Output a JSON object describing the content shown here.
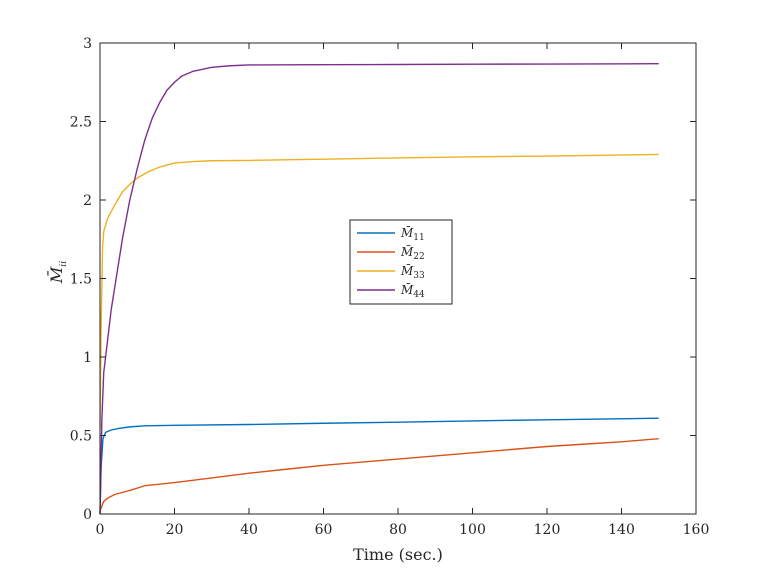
{
  "chart_data": {
    "type": "line",
    "xlabel": "Time (sec.)",
    "ylabel": {
      "base": "M̄",
      "sub": "ii"
    },
    "xlim": [
      0,
      160
    ],
    "ylim": [
      0,
      3
    ],
    "xticks": [
      "0",
      "20",
      "40",
      "60",
      "80",
      "100",
      "120",
      "140",
      "160"
    ],
    "yticks": [
      "0",
      "0.5",
      "1",
      "1.5",
      "2",
      "2.5",
      "3"
    ],
    "grid": false,
    "legend_position": "center",
    "series": [
      {
        "name": "M̄11",
        "base": "M̄",
        "sub": "11",
        "color": "#0072BD",
        "points": [
          [
            0,
            0
          ],
          [
            0.3,
            0.3
          ],
          [
            0.8,
            0.48
          ],
          [
            1.5,
            0.52
          ],
          [
            3,
            0.535
          ],
          [
            5,
            0.545
          ],
          [
            8,
            0.555
          ],
          [
            12,
            0.562
          ],
          [
            20,
            0.565
          ],
          [
            40,
            0.57
          ],
          [
            60,
            0.578
          ],
          [
            80,
            0.585
          ],
          [
            100,
            0.593
          ],
          [
            120,
            0.6
          ],
          [
            150,
            0.61
          ]
        ]
      },
      {
        "name": "M̄22",
        "base": "M̄",
        "sub": "22",
        "color": "#D95319",
        "points": [
          [
            0,
            0.02
          ],
          [
            0.5,
            0.05
          ],
          [
            1,
            0.08
          ],
          [
            2,
            0.1
          ],
          [
            4,
            0.125
          ],
          [
            8,
            0.15
          ],
          [
            12,
            0.18
          ],
          [
            16,
            0.19
          ],
          [
            20,
            0.2
          ],
          [
            30,
            0.23
          ],
          [
            40,
            0.26
          ],
          [
            50,
            0.285
          ],
          [
            60,
            0.31
          ],
          [
            70,
            0.33
          ],
          [
            80,
            0.35
          ],
          [
            90,
            0.37
          ],
          [
            100,
            0.39
          ],
          [
            110,
            0.41
          ],
          [
            120,
            0.43
          ],
          [
            130,
            0.445
          ],
          [
            140,
            0.46
          ],
          [
            150,
            0.48
          ]
        ]
      },
      {
        "name": "M̄33",
        "base": "M̄",
        "sub": "33",
        "color": "#EDB120",
        "points": [
          [
            0,
            0.55
          ],
          [
            0.3,
            1.2
          ],
          [
            0.7,
            1.7
          ],
          [
            1,
            1.8
          ],
          [
            2,
            1.88
          ],
          [
            4,
            1.97
          ],
          [
            6,
            2.05
          ],
          [
            8,
            2.1
          ],
          [
            10,
            2.14
          ],
          [
            13,
            2.18
          ],
          [
            16,
            2.21
          ],
          [
            20,
            2.235
          ],
          [
            25,
            2.245
          ],
          [
            30,
            2.25
          ],
          [
            40,
            2.252
          ],
          [
            60,
            2.26
          ],
          [
            80,
            2.268
          ],
          [
            100,
            2.275
          ],
          [
            120,
            2.28
          ],
          [
            150,
            2.29
          ]
        ]
      },
      {
        "name": "M̄44",
        "base": "M̄",
        "sub": "44",
        "color": "#7E2F8E",
        "points": [
          [
            0,
            0
          ],
          [
            0.5,
            0.6
          ],
          [
            1,
            0.9
          ],
          [
            2,
            1.1
          ],
          [
            3,
            1.3
          ],
          [
            4,
            1.45
          ],
          [
            6,
            1.75
          ],
          [
            8,
            2.0
          ],
          [
            10,
            2.2
          ],
          [
            12,
            2.38
          ],
          [
            14,
            2.52
          ],
          [
            16,
            2.62
          ],
          [
            18,
            2.7
          ],
          [
            20,
            2.75
          ],
          [
            22,
            2.79
          ],
          [
            25,
            2.82
          ],
          [
            30,
            2.845
          ],
          [
            35,
            2.855
          ],
          [
            40,
            2.86
          ],
          [
            60,
            2.862
          ],
          [
            80,
            2.863
          ],
          [
            100,
            2.865
          ],
          [
            120,
            2.866
          ],
          [
            150,
            2.868
          ]
        ]
      }
    ]
  }
}
